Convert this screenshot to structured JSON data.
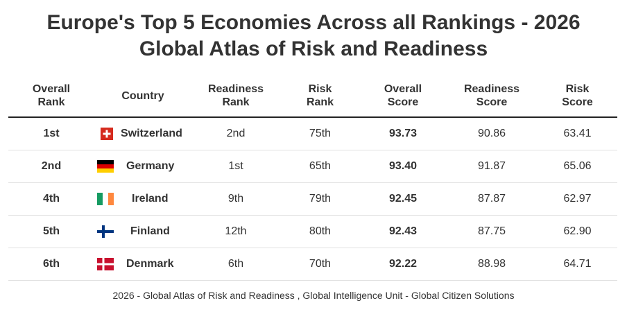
{
  "title_line1": "Europe's Top 5 Economies Across all Rankings - 2026",
  "title_line2": "Global Atlas of Risk and Readiness",
  "columns": [
    [
      "Overall",
      "Rank"
    ],
    [
      "Country"
    ],
    [
      "Readiness",
      "Rank"
    ],
    [
      "Risk",
      "Rank"
    ],
    [
      "Overall",
      "Score"
    ],
    [
      "Readiness",
      "Score"
    ],
    [
      "Risk",
      "Score"
    ]
  ],
  "chart_data": {
    "type": "table",
    "rows": [
      {
        "overall_rank": "1st",
        "country": "Switzerland",
        "flag_icon": "switzerland-flag-icon",
        "readiness_rank": "2nd",
        "risk_rank": "75th",
        "overall_score": "93.73",
        "readiness_score": "90.86",
        "risk_score": "63.41"
      },
      {
        "overall_rank": "2nd",
        "country": "Germany",
        "flag_icon": "germany-flag-icon",
        "readiness_rank": "1st",
        "risk_rank": "65th",
        "overall_score": "93.40",
        "readiness_score": "91.87",
        "risk_score": "65.06"
      },
      {
        "overall_rank": "4th",
        "country": "Ireland",
        "flag_icon": "ireland-flag-icon",
        "readiness_rank": "9th",
        "risk_rank": "79th",
        "overall_score": "92.45",
        "readiness_score": "87.87",
        "risk_score": "62.97"
      },
      {
        "overall_rank": "5th",
        "country": "Finland",
        "flag_icon": "finland-flag-icon",
        "readiness_rank": "12th",
        "risk_rank": "80th",
        "overall_score": "92.43",
        "readiness_score": "87.75",
        "risk_score": "62.90"
      },
      {
        "overall_rank": "6th",
        "country": "Denmark",
        "flag_icon": "denmark-flag-icon",
        "readiness_rank": "6th",
        "risk_rank": "70th",
        "overall_score": "92.22",
        "readiness_score": "88.98",
        "risk_score": "64.71"
      }
    ]
  },
  "source": "2026 - Global Atlas of Risk and Readiness , Global Intelligence Unit - Global Citizen Solutions",
  "colors": {
    "text": "#333333",
    "header_rule": "#222222",
    "row_rule": "#e2e2e2",
    "swiss_red": "#d52b1e",
    "german_black": "#000000",
    "german_red": "#dd0000",
    "german_gold": "#ffce00",
    "irish_green": "#169b62",
    "irish_orange": "#ff883e",
    "finnish_blue": "#003580",
    "danish_red": "#c8102e"
  }
}
